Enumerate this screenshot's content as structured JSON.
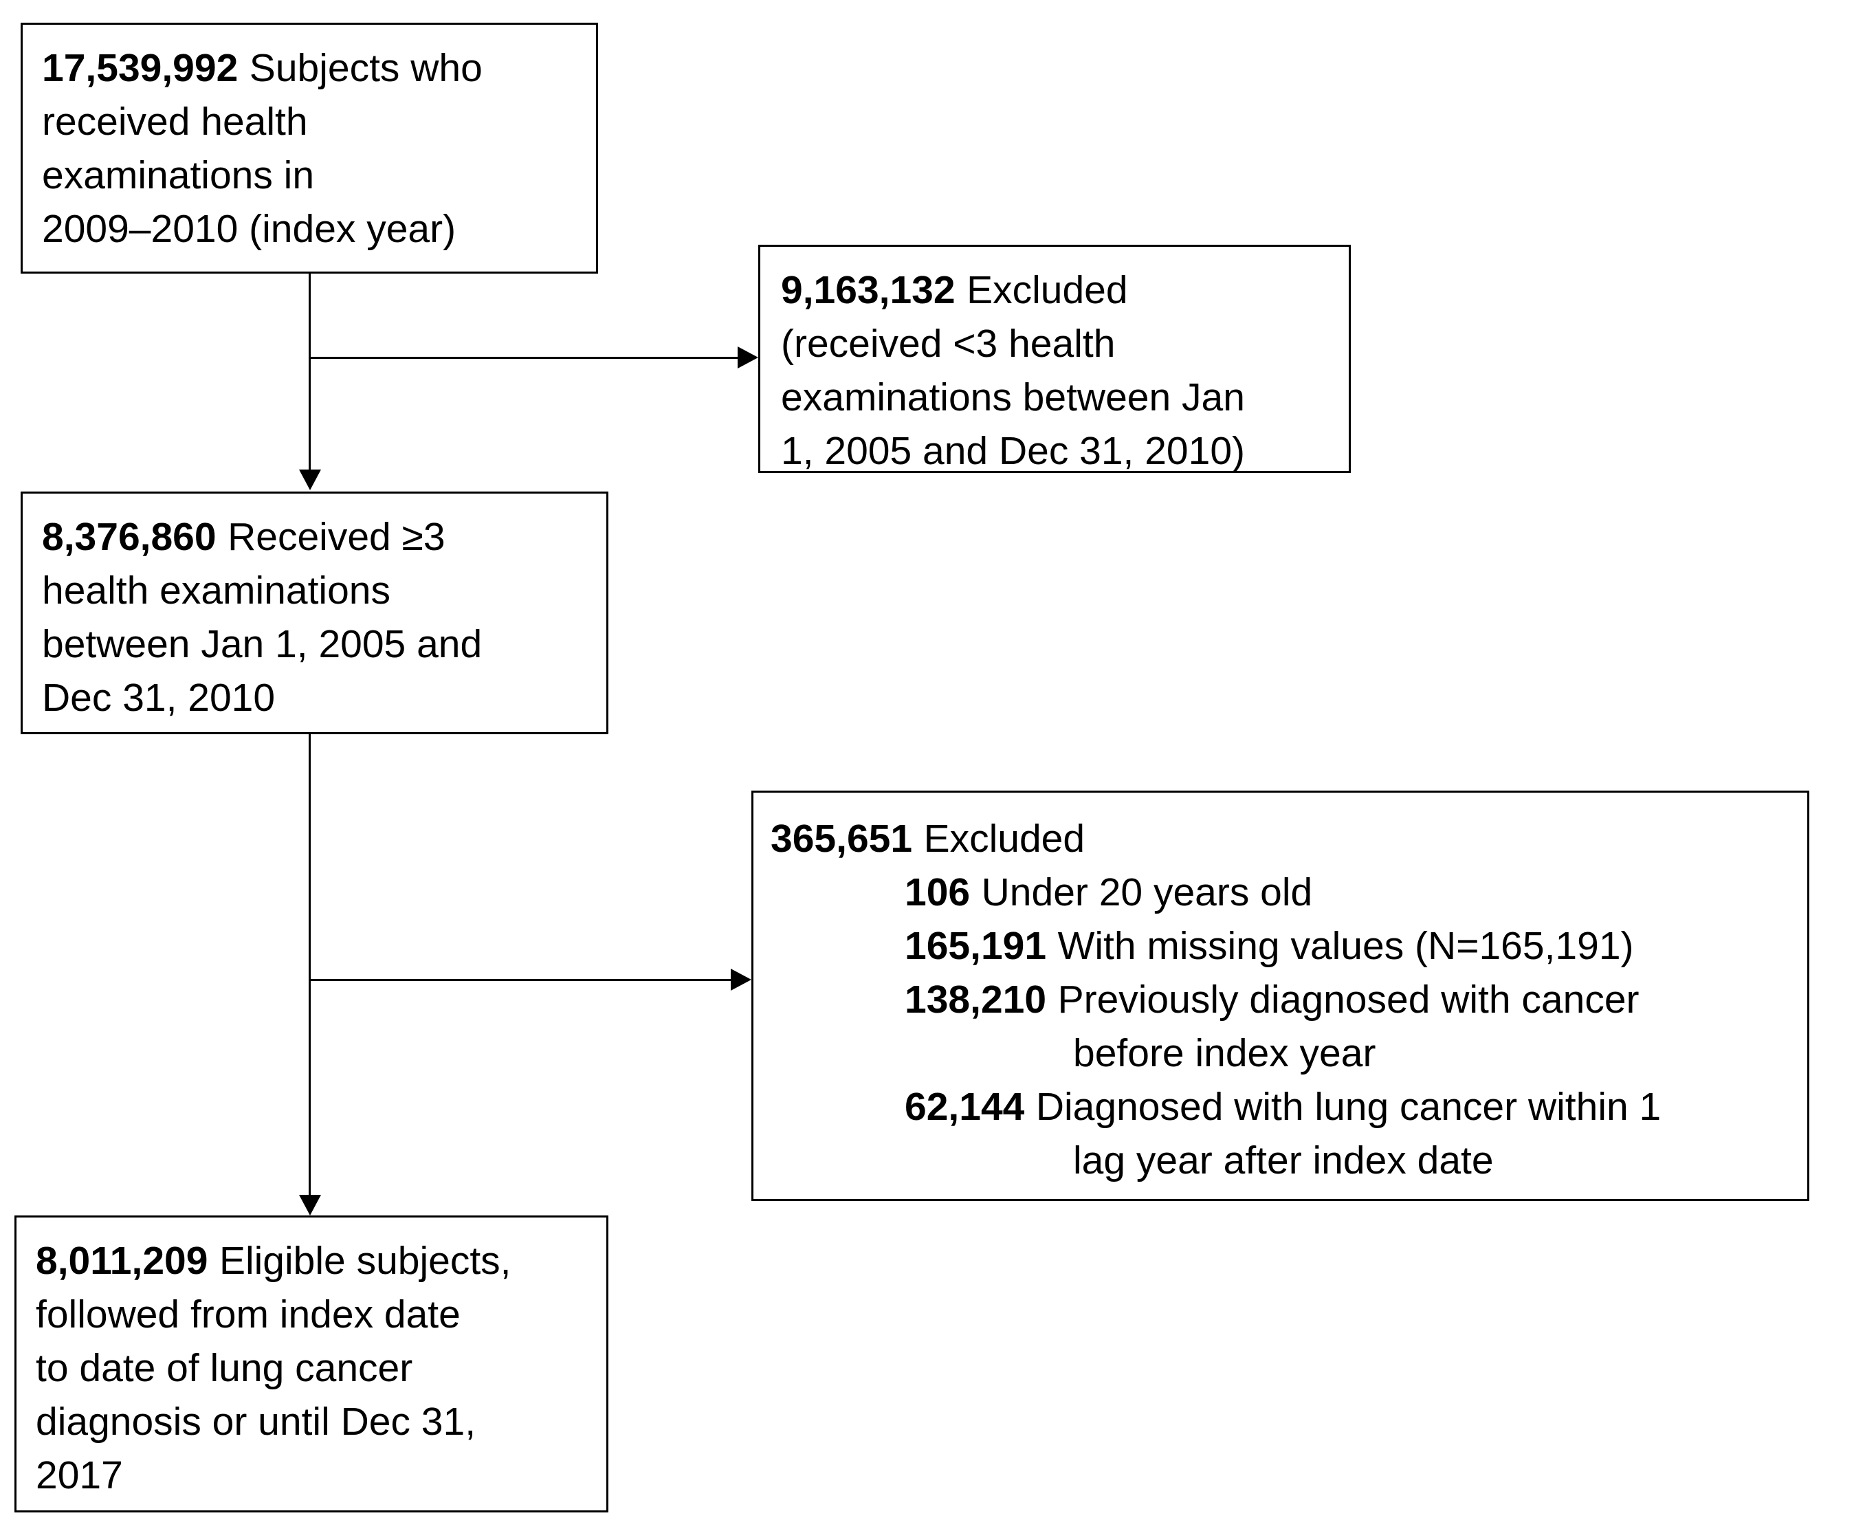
{
  "flow": {
    "colors": {
      "background": "#ffffff",
      "line": "#000000",
      "text": "#000000"
    },
    "box1": {
      "number": "17,539,992",
      "lines": [
        "Subjects who",
        "received health",
        "examinations in",
        "2009–2010 (index year)"
      ]
    },
    "excluded1": {
      "number": "9,163,132",
      "lines": [
        "Excluded",
        "(received <3 health",
        "examinations between Jan",
        "1, 2005 and Dec 31, 2010)"
      ]
    },
    "box2": {
      "number": "8,376,860",
      "lines": [
        "Received ≥3",
        "health examinations",
        "between Jan 1, 2005 and",
        "Dec 31, 2010"
      ]
    },
    "excluded2": {
      "number": "365,651",
      "label": "Excluded",
      "items": [
        {
          "number": "106",
          "text": "Under 20 years old",
          "continuation": ""
        },
        {
          "number": "165,191",
          "text": "With missing values (N=165,191)",
          "continuation": ""
        },
        {
          "number": "138,210",
          "text": "Previously diagnosed with cancer",
          "continuation": "before index year"
        },
        {
          "number": "62,144",
          "text": "Diagnosed with lung cancer within 1",
          "continuation": "lag year after index date"
        }
      ]
    },
    "box3": {
      "number": "8,011,209",
      "lines": [
        "Eligible subjects,",
        "followed from index date",
        "to date of lung cancer",
        "diagnosis or until Dec 31,",
        "2017"
      ]
    }
  }
}
